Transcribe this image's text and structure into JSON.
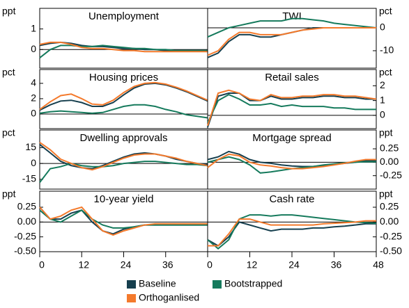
{
  "chart_data": [
    {
      "type": "line",
      "title": "Unemployment",
      "y_unit": "ppt",
      "x": [
        0,
        3,
        6,
        9,
        12,
        15,
        18,
        21,
        24,
        27,
        30,
        33,
        36,
        39,
        42,
        45,
        48
      ],
      "xlim": [
        0,
        48
      ],
      "ylim": [
        -0.9,
        2.0
      ],
      "yticks": [
        0,
        1
      ],
      "series": [
        {
          "name": "Baseline",
          "color": "#163f4e",
          "values": [
            0.2,
            0.3,
            0.35,
            0.3,
            0.2,
            0.15,
            0.15,
            0.1,
            0.05,
            0.05,
            0.0,
            0.0,
            -0.05,
            -0.05,
            -0.05,
            -0.05,
            -0.05
          ]
        },
        {
          "name": "Orthoganlised",
          "color": "#f47a2c",
          "values": [
            0.25,
            0.35,
            0.35,
            0.25,
            0.1,
            0.05,
            0.05,
            0.0,
            -0.05,
            -0.05,
            -0.1,
            -0.1,
            -0.1,
            -0.1,
            -0.1,
            -0.1,
            -0.1
          ]
        },
        {
          "name": "Bootstrapped",
          "color": "#157a5c",
          "values": [
            -0.4,
            0.0,
            0.2,
            0.2,
            0.15,
            0.15,
            0.2,
            0.15,
            0.1,
            0.05,
            0.05,
            0.0,
            0.0,
            -0.05,
            -0.05,
            -0.05,
            -0.05
          ]
        }
      ]
    },
    {
      "type": "line",
      "title": "TWI",
      "y_unit": "pct",
      "x": [
        0,
        3,
        6,
        9,
        12,
        15,
        18,
        21,
        24,
        27,
        30,
        33,
        36,
        39,
        42,
        45,
        48
      ],
      "xlim": [
        0,
        48
      ],
      "ylim": [
        -17.6,
        8.5
      ],
      "yticks": [
        0,
        -10
      ],
      "series": [
        {
          "values": [
            -13,
            -11,
            -6,
            -3,
            -3,
            -4,
            -4,
            -3,
            -2,
            -1,
            0,
            0,
            0,
            0,
            0,
            0,
            0
          ]
        },
        {
          "values": [
            -12,
            -10,
            -5,
            -2,
            -2,
            -3,
            -3,
            -3,
            -2,
            -1,
            -0.5,
            0,
            0,
            0,
            0,
            0,
            0
          ]
        },
        {
          "values": [
            -4,
            -2,
            0,
            1,
            2,
            3,
            3,
            3,
            4,
            4,
            3.5,
            3,
            2,
            1.5,
            1,
            0.5,
            0
          ]
        }
      ]
    },
    {
      "type": "line",
      "title": "Housing prices",
      "y_unit": "pct",
      "x": [
        0,
        3,
        6,
        9,
        12,
        15,
        18,
        21,
        24,
        27,
        30,
        33,
        36,
        39,
        42,
        45,
        48
      ],
      "xlim": [
        0,
        48
      ],
      "ylim": [
        -1.9,
        5.8
      ],
      "yticks": [
        0,
        2,
        4
      ],
      "series": [
        {
          "values": [
            0.5,
            1.2,
            1.7,
            1.8,
            1.5,
            1.0,
            1.0,
            1.5,
            2.5,
            3.4,
            3.9,
            4.0,
            3.8,
            3.4,
            2.9,
            2.3,
            1.7
          ]
        },
        {
          "values": [
            0.6,
            1.6,
            2.4,
            2.6,
            2.0,
            1.3,
            1.2,
            1.8,
            2.8,
            3.6,
            4.0,
            4.1,
            3.9,
            3.5,
            3.0,
            2.4,
            1.8
          ]
        },
        {
          "values": [
            0.1,
            0.3,
            0.4,
            0.3,
            0.2,
            0.1,
            0.2,
            0.6,
            1.0,
            1.2,
            1.2,
            1.0,
            0.6,
            0.3,
            -0.1,
            -0.3,
            -0.5
          ]
        }
      ]
    },
    {
      "type": "line",
      "title": "Retail sales",
      "y_unit": "pct",
      "x": [
        0,
        3,
        6,
        9,
        12,
        15,
        18,
        21,
        24,
        27,
        30,
        33,
        36,
        39,
        42,
        45,
        48
      ],
      "xlim": [
        0,
        48
      ],
      "ylim": [
        -0.9,
        3.1
      ],
      "yticks": [
        0,
        1,
        2
      ],
      "series": [
        {
          "values": [
            -0.8,
            1.3,
            1.5,
            1.5,
            1.0,
            1.0,
            1.3,
            1.1,
            1.1,
            1.2,
            1.2,
            1.3,
            1.3,
            1.2,
            1.2,
            1.1,
            1.1
          ]
        },
        {
          "values": [
            -0.7,
            1.5,
            1.7,
            1.5,
            1.1,
            1.0,
            1.4,
            1.2,
            1.2,
            1.3,
            1.3,
            1.4,
            1.4,
            1.3,
            1.3,
            1.2,
            1.1
          ]
        },
        {
          "values": [
            -0.5,
            1.0,
            1.4,
            1.1,
            0.7,
            0.7,
            0.8,
            0.6,
            0.7,
            0.6,
            0.6,
            0.6,
            0.5,
            0.5,
            0.4,
            0.4,
            0.4
          ]
        }
      ]
    },
    {
      "type": "line",
      "title": "Dwelling approvals",
      "y_unit": "pct",
      "x": [
        0,
        3,
        6,
        9,
        12,
        15,
        18,
        21,
        24,
        27,
        30,
        33,
        36,
        39,
        42,
        45,
        48
      ],
      "xlim": [
        0,
        48
      ],
      "ylim": [
        -24.3,
        31.7
      ],
      "yticks": [
        -15,
        0,
        15
      ],
      "series": [
        {
          "values": [
            18,
            10,
            2,
            -2,
            -4,
            -5,
            -2,
            2,
            6,
            9,
            10,
            9,
            7,
            4,
            2,
            0,
            -1
          ]
        },
        {
          "values": [
            20,
            13,
            4,
            0,
            -4,
            -6,
            -3,
            1,
            5,
            8,
            9,
            9,
            7,
            5,
            2,
            0,
            -2
          ]
        },
        {
          "values": [
            -18,
            -5,
            -3,
            0,
            -2,
            -3,
            -3,
            -2,
            0,
            1,
            2,
            2,
            1,
            0,
            -1,
            -1,
            -2
          ]
        }
      ]
    },
    {
      "type": "line",
      "title": "Mortgage spread",
      "y_unit": "ppt",
      "x": [
        0,
        3,
        6,
        9,
        12,
        15,
        18,
        21,
        24,
        27,
        30,
        33,
        36,
        39,
        42,
        45,
        48
      ],
      "xlim": [
        0,
        48
      ],
      "ylim": [
        -0.5,
        0.6
      ],
      "yticks": [
        -0.25,
        {
          "value": 0,
          "label": "0.00"
        },
        0.25
      ],
      "series": [
        {
          "values": [
            0.05,
            0.1,
            0.2,
            0.15,
            0.05,
            0.0,
            -0.02,
            -0.05,
            -0.07,
            -0.08,
            -0.08,
            -0.06,
            -0.04,
            -0.02,
            0.0,
            0.03,
            0.03
          ]
        },
        {
          "values": [
            -0.1,
            0.05,
            0.15,
            0.12,
            0.0,
            -0.05,
            -0.07,
            -0.1,
            -0.12,
            -0.12,
            -0.1,
            -0.08,
            -0.05,
            -0.02,
            0.02,
            0.05,
            0.05
          ]
        },
        {
          "values": [
            0.0,
            0.05,
            0.1,
            0.05,
            -0.05,
            -0.2,
            -0.18,
            -0.15,
            -0.12,
            -0.1,
            -0.08,
            -0.05,
            -0.03,
            -0.01,
            0.0,
            0.01,
            0.01
          ]
        }
      ]
    },
    {
      "type": "line",
      "title": "10-year yield",
      "y_unit": "ppt",
      "x": [
        0,
        3,
        6,
        9,
        12,
        15,
        18,
        21,
        24,
        27,
        30,
        33,
        36,
        39,
        42,
        45,
        48
      ],
      "xlim": [
        0,
        48
      ],
      "ylim": [
        -0.5,
        0.52
      ],
      "yticks": [
        {
          "value": -0.5,
          "label": "-0.50"
        },
        -0.25,
        {
          "value": 0,
          "label": "0.00"
        },
        0.25
      ],
      "xticks": [
        0,
        12,
        24,
        36
      ],
      "series": [
        {
          "values": [
            0.25,
            0.05,
            0.05,
            0.15,
            0.2,
            0.0,
            -0.15,
            -0.2,
            -0.12,
            -0.08,
            -0.05,
            -0.05,
            -0.05,
            -0.05,
            -0.05,
            -0.05,
            -0.05
          ]
        },
        {
          "values": [
            0.25,
            0.05,
            0.1,
            0.2,
            0.25,
            0.05,
            -0.15,
            -0.22,
            -0.15,
            -0.1,
            -0.05,
            -0.03,
            -0.03,
            -0.03,
            -0.03,
            -0.03,
            -0.03
          ]
        },
        {
          "values": [
            0.2,
            0.05,
            0.0,
            0.1,
            0.2,
            0.05,
            -0.05,
            -0.1,
            -0.1,
            -0.08,
            -0.05,
            -0.05,
            -0.05,
            -0.05,
            -0.05,
            -0.05,
            -0.05
          ]
        }
      ]
    },
    {
      "type": "line",
      "title": "Cash rate",
      "y_unit": "ppt",
      "x": [
        0,
        3,
        6,
        9,
        12,
        15,
        18,
        21,
        24,
        27,
        30,
        33,
        36,
        39,
        42,
        45,
        48
      ],
      "xlim": [
        0,
        48
      ],
      "ylim": [
        -0.5,
        0.52
      ],
      "yticks": [
        {
          "value": -0.5,
          "label": "-0.50"
        },
        -0.25,
        {
          "value": 0,
          "label": "0.00"
        },
        0.25
      ],
      "xticks": [
        0,
        12,
        24,
        36,
        48
      ],
      "series": [
        {
          "values": [
            -0.3,
            -0.4,
            -0.25,
            0.0,
            -0.05,
            -0.1,
            -0.15,
            -0.12,
            -0.12,
            -0.12,
            -0.1,
            -0.1,
            -0.08,
            -0.07,
            -0.05,
            -0.03,
            -0.03
          ]
        },
        {
          "values": [
            -0.4,
            -0.4,
            -0.2,
            0.05,
            0.05,
            0.0,
            -0.05,
            -0.05,
            -0.05,
            -0.05,
            -0.05,
            -0.03,
            -0.02,
            -0.01,
            0.0,
            0.02,
            0.02
          ]
        },
        {
          "values": [
            -0.3,
            -0.45,
            -0.3,
            0.05,
            0.12,
            0.12,
            0.1,
            0.12,
            0.12,
            0.1,
            0.08,
            0.06,
            0.04,
            0.02,
            0.0,
            -0.01,
            -0.02
          ]
        }
      ]
    }
  ]
}
